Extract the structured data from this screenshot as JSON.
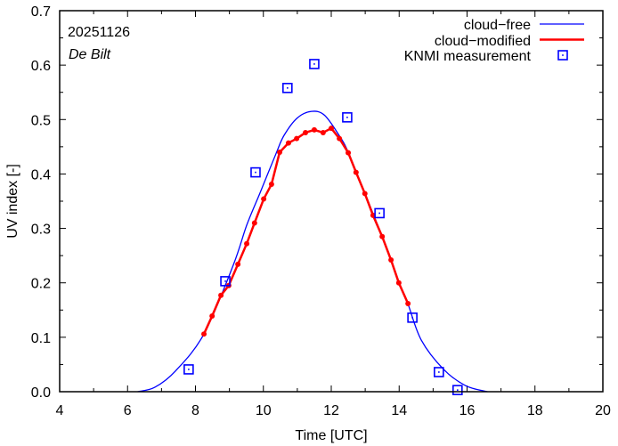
{
  "chart_data": {
    "type": "line",
    "date_label": "20251126",
    "location_label": "De Bilt",
    "xlabel": "Time  [UTC]",
    "ylabel": "UV index  [-]",
    "xlim": [
      4,
      20
    ],
    "ylim": [
      0,
      0.7
    ],
    "x_ticks": [
      "4",
      "6",
      "8",
      "10",
      "12",
      "14",
      "16",
      "18",
      "20"
    ],
    "x_tick_values": [
      4,
      6,
      8,
      10,
      12,
      14,
      16,
      18,
      20
    ],
    "y_ticks": [
      "0.0",
      "0.1",
      "0.2",
      "0.3",
      "0.4",
      "0.5",
      "0.6",
      "0.7"
    ],
    "y_tick_values": [
      0,
      0.1,
      0.2,
      0.3,
      0.4,
      0.5,
      0.6,
      0.7
    ],
    "grid": false,
    "legend_position": "top-right",
    "series": [
      {
        "name": "cloud−free",
        "style": "line",
        "color": "#0000ff",
        "x": [
          6.3,
          6.8,
          7.41,
          8.25,
          9.11,
          9.51,
          9.9,
          10.37,
          10.61,
          11.0,
          11.42,
          11.8,
          12.24,
          12.5,
          13.0,
          13.5,
          14.0,
          14.26,
          14.65,
          15.31,
          15.96,
          16.6
        ],
        "y": [
          0.0,
          0.008,
          0.038,
          0.106,
          0.232,
          0.306,
          0.365,
          0.437,
          0.471,
          0.503,
          0.515,
          0.508,
          0.47,
          0.44,
          0.363,
          0.285,
          0.2,
          0.161,
          0.095,
          0.041,
          0.011,
          0.0
        ]
      },
      {
        "name": "cloud−modified",
        "style": "line-points",
        "color": "#ff0000",
        "x": [
          8.25,
          8.49,
          8.75,
          8.98,
          9.25,
          9.51,
          9.74,
          10.01,
          10.24,
          10.48,
          10.74,
          10.98,
          11.24,
          11.5,
          11.76,
          12.0,
          12.24,
          12.5,
          12.73,
          12.99,
          13.23,
          13.5,
          13.76,
          13.99,
          14.26
        ],
        "y": [
          0.106,
          0.139,
          0.177,
          0.195,
          0.234,
          0.272,
          0.31,
          0.354,
          0.381,
          0.44,
          0.457,
          0.465,
          0.476,
          0.481,
          0.476,
          0.484,
          0.465,
          0.439,
          0.403,
          0.364,
          0.324,
          0.285,
          0.242,
          0.2,
          0.162
        ]
      },
      {
        "name": "KNMI measurement",
        "style": "markers",
        "color": "#0000ff",
        "x": [
          7.8,
          8.88,
          9.77,
          10.71,
          11.5,
          12.47,
          13.42,
          14.39,
          15.17,
          15.72
        ],
        "y": [
          0.041,
          0.203,
          0.403,
          0.558,
          0.602,
          0.504,
          0.328,
          0.136,
          0.036,
          0.003
        ]
      }
    ]
  }
}
